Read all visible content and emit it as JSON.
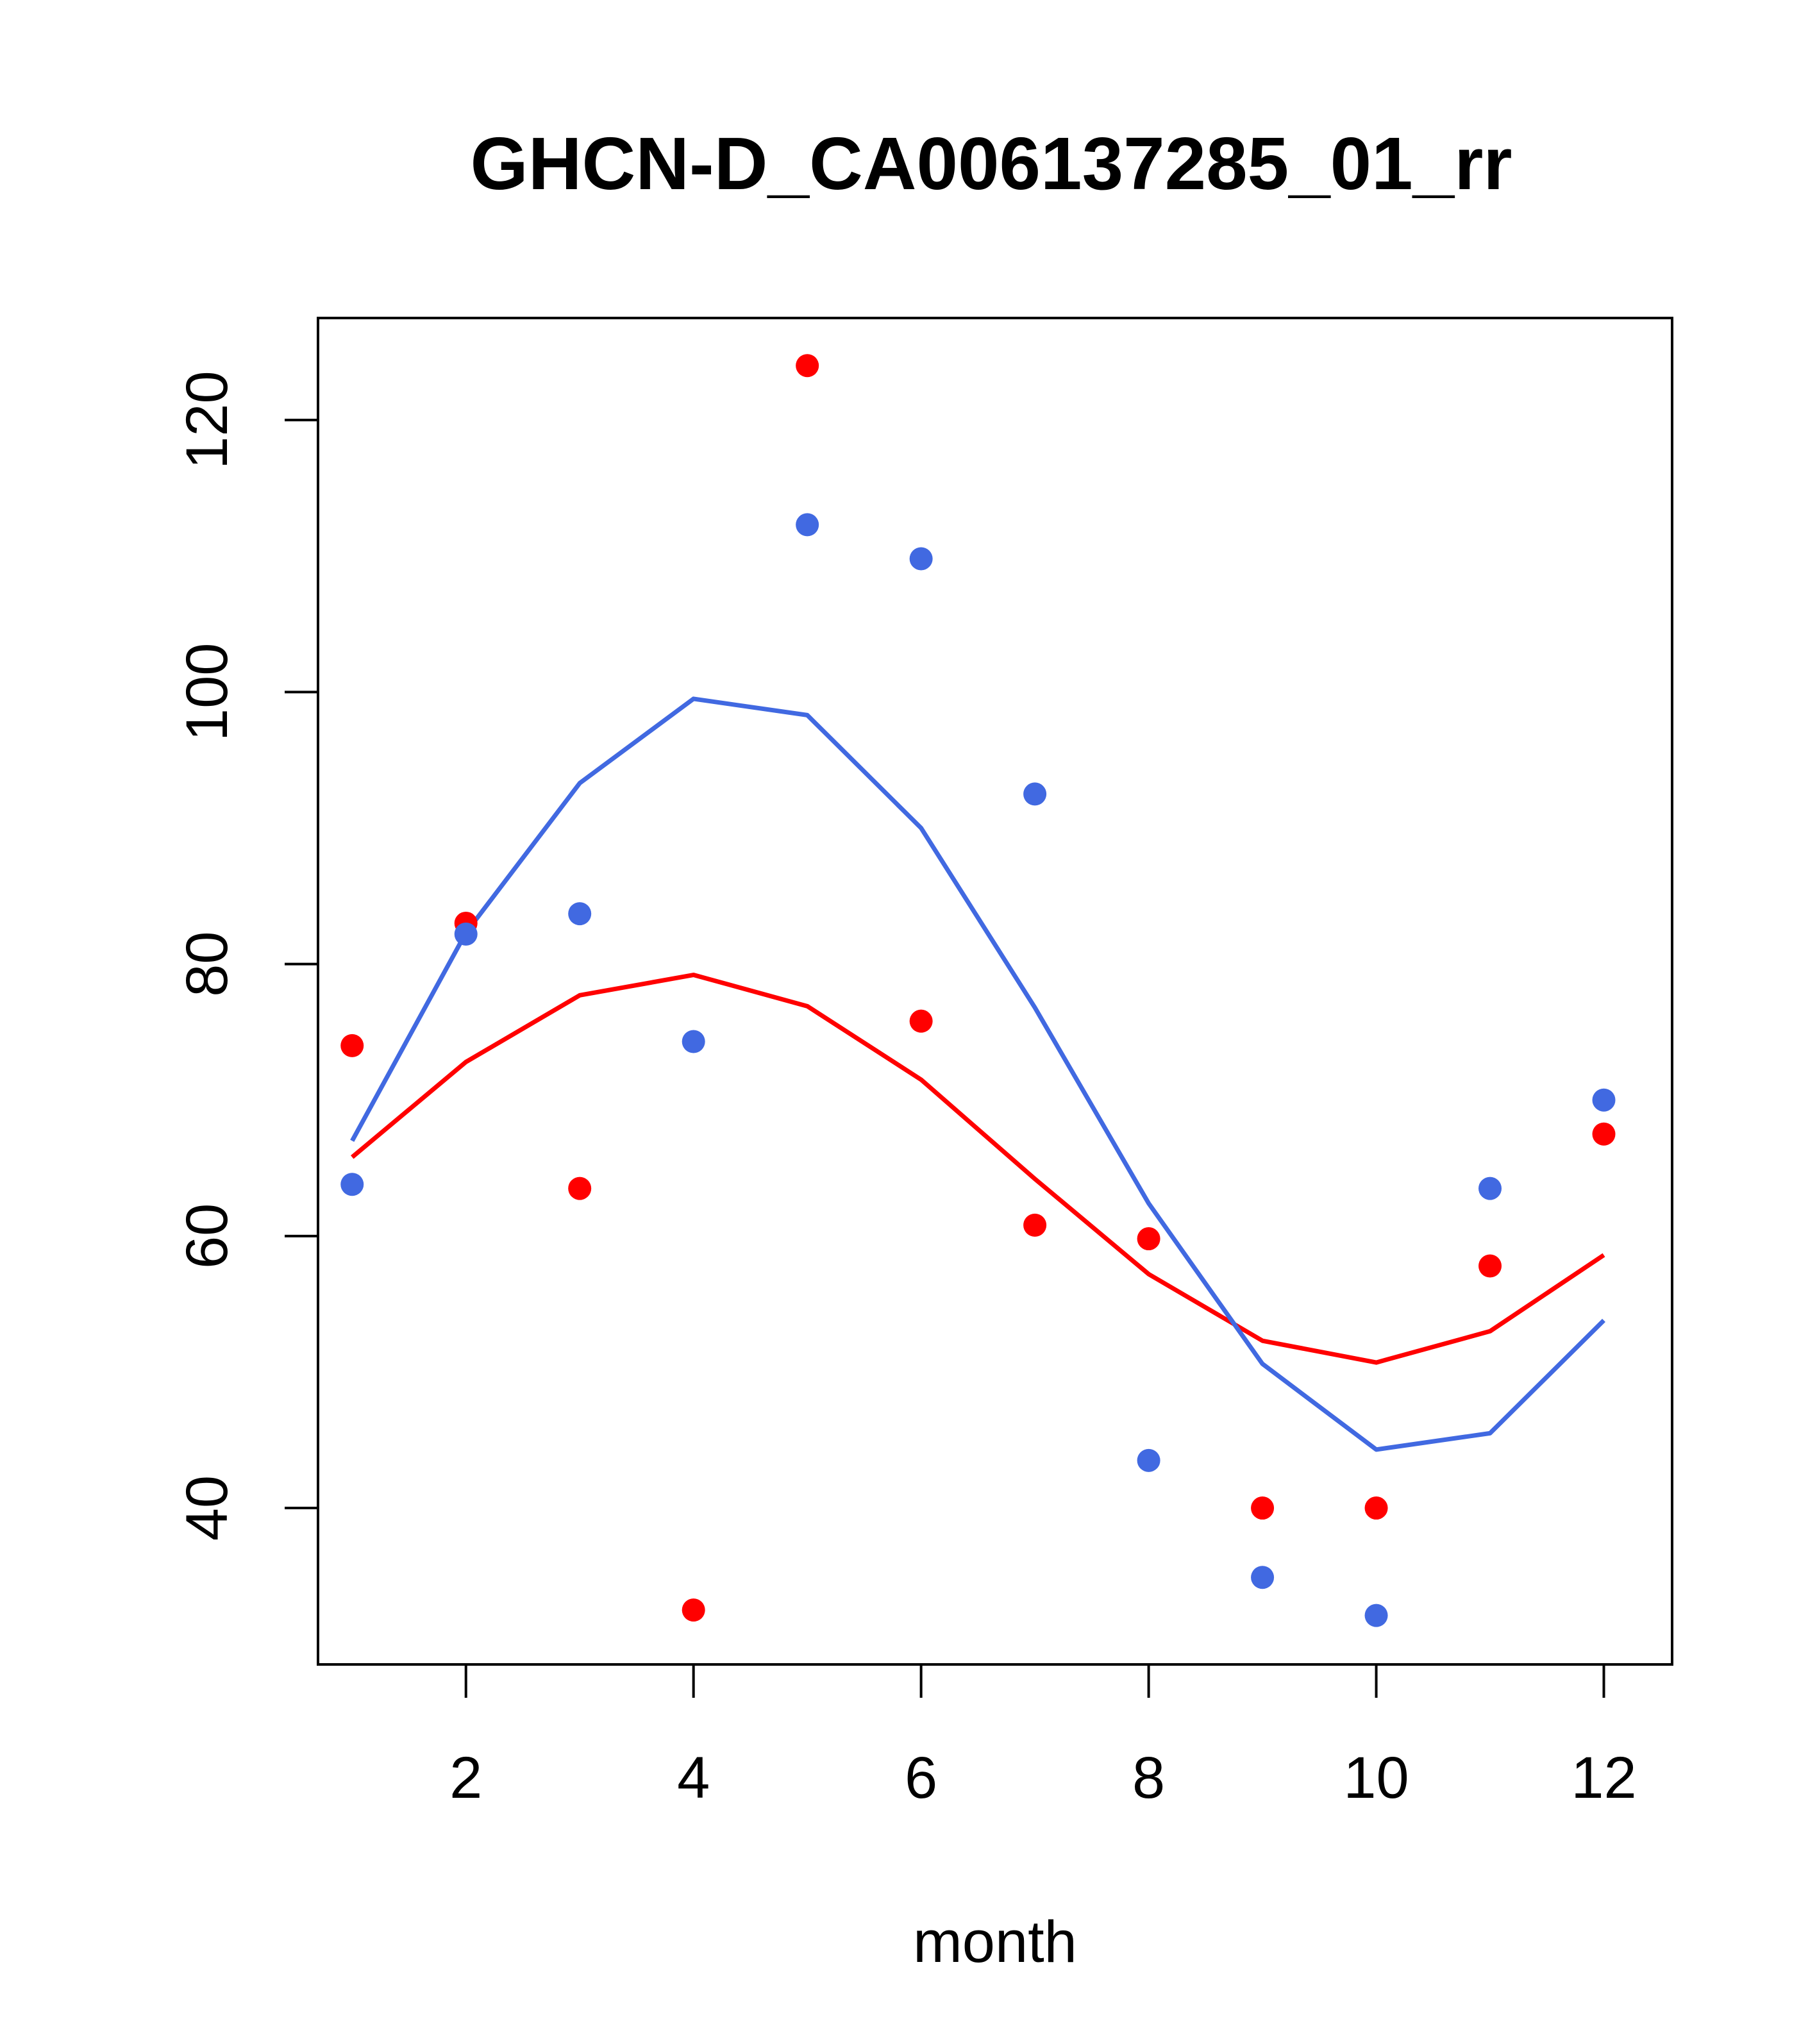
{
  "chart_data": {
    "type": "scatter",
    "title": "GHCN-D_CA006137285_01_rr",
    "xlabel": "month",
    "ylabel": "",
    "xlim": [
      0.7,
      12.6
    ],
    "ylim": [
      28.5,
      127.5
    ],
    "x_ticks": [
      2,
      4,
      6,
      8,
      10,
      12
    ],
    "y_ticks": [
      40,
      60,
      80,
      100,
      120
    ],
    "grid": false,
    "legend": "none",
    "series": [
      {
        "kind": "points",
        "color": "#ff0000",
        "x": [
          1,
          2,
          3,
          4,
          5,
          6,
          7,
          8,
          9,
          10,
          11,
          12
        ],
        "values": [
          74.0,
          83.0,
          63.5,
          32.5,
          124.0,
          75.8,
          60.8,
          59.8,
          40.0,
          40.0,
          57.8,
          67.5
        ]
      },
      {
        "kind": "points",
        "color": "#4169e1",
        "x": [
          1,
          2,
          3,
          4,
          5,
          6,
          7,
          8,
          9,
          10,
          11,
          12
        ],
        "values": [
          63.8,
          82.2,
          83.7,
          74.3,
          112.3,
          109.8,
          92.5,
          43.5,
          34.9,
          32.1,
          63.5,
          70.0
        ]
      },
      {
        "kind": "line",
        "color": "#ff0000",
        "x": [
          1,
          2,
          3,
          4,
          5,
          6,
          7,
          8,
          9,
          10,
          11,
          12
        ],
        "values": [
          65.8,
          72.8,
          77.7,
          79.2,
          76.9,
          71.5,
          64.2,
          57.2,
          52.3,
          50.7,
          53.0,
          58.6
        ]
      },
      {
        "kind": "line",
        "color": "#4169e1",
        "x": [
          1,
          2,
          3,
          4,
          5,
          6,
          7,
          8,
          9,
          10,
          11,
          12
        ],
        "values": [
          67.0,
          82.3,
          93.3,
          99.5,
          98.3,
          90.0,
          76.8,
          62.4,
          50.6,
          44.3,
          45.5,
          53.8
        ]
      }
    ]
  }
}
